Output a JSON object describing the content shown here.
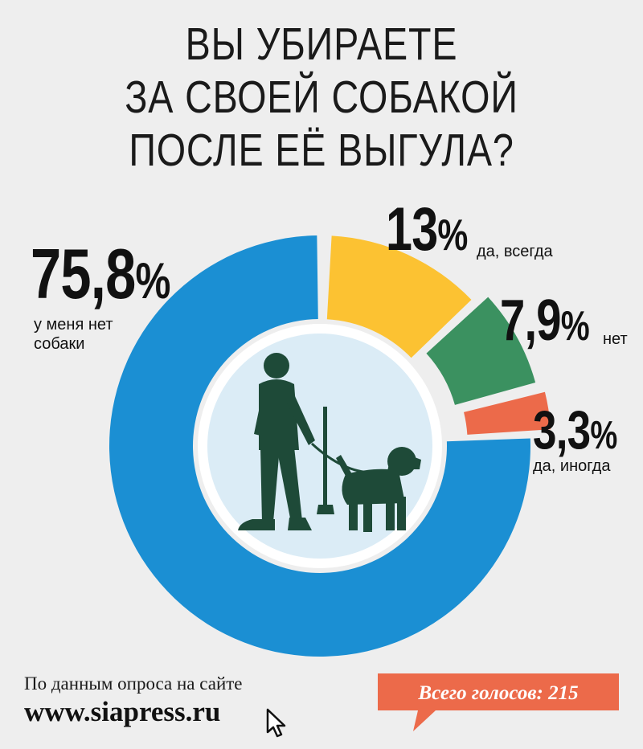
{
  "title_lines": [
    "ВЫ УБИРАЕТЕ",
    "ЗА СВОЕЙ СОБАКОЙ",
    "ПОСЛЕ ЕЁ ВЫГУЛА?"
  ],
  "chart_data": {
    "type": "pie",
    "title": "ВЫ УБИРАЕТЕ ЗА СВОЕЙ СОБАКОЙ ПОСЛЕ ЕЁ ВЫГУЛА?",
    "slices": [
      {
        "label": "да, всегда",
        "value": 13,
        "value_label": "13",
        "color": "#fcc232"
      },
      {
        "label": "нет",
        "value": 7.9,
        "value_label": "7,9",
        "color": "#3b9160"
      },
      {
        "label": "да, иногда",
        "value": 3.3,
        "value_label": "3,3",
        "color": "#ec6a4a"
      },
      {
        "label": "у меня нет\nсобаки",
        "value": 75.8,
        "value_label": "75,8",
        "color": "#1b8fd3"
      }
    ],
    "percent_sign": "%",
    "center_image": "person-walking-dog-icon",
    "center_colors": {
      "disc": "#dbecf6",
      "figure": "#1e4a38"
    }
  },
  "footer": {
    "source_label": "По данным опроса на сайте",
    "site": "www.siapress.ru",
    "votes": "Всего голосов: 215",
    "votes_color": "#ec6a4a"
  }
}
